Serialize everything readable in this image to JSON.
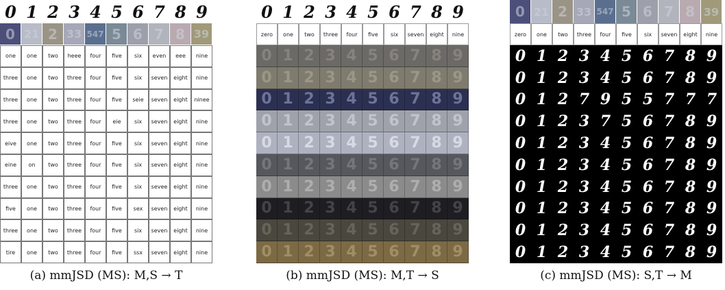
{
  "panels": [
    {
      "id": "a",
      "caption": "(a) mmJSD (MS): M,S → T",
      "mnist_top": [
        "0",
        "1",
        "2",
        "3",
        "4",
        "5",
        "6",
        "7",
        "8",
        "9"
      ],
      "svhn_top": [
        "0",
        "21",
        "2",
        "33",
        "547",
        "5",
        "6",
        "7",
        "8",
        "39"
      ],
      "text_rows": [
        [
          "one",
          "one",
          "two",
          "heee",
          "four",
          "five",
          "six",
          "even",
          "eee",
          "nine"
        ],
        [
          "three",
          "one",
          "two",
          "three",
          "four",
          "five",
          "six",
          "seven",
          "eight",
          "nine"
        ],
        [
          "three",
          "one",
          "two",
          "three",
          "four",
          "five",
          "seie",
          "seven",
          "eight",
          "ninee"
        ],
        [
          "three",
          "one",
          "two",
          "three",
          "four",
          "eie",
          "six",
          "seven",
          "eight",
          "nine"
        ],
        [
          "eive",
          "one",
          "two",
          "three",
          "four",
          "five",
          "six",
          "seven",
          "eight",
          "nine"
        ],
        [
          "eine",
          "on",
          "two",
          "three",
          "four",
          "five",
          "six",
          "seven",
          "eight",
          "nine"
        ],
        [
          "three",
          "one",
          "two",
          "three",
          "four",
          "five",
          "six",
          "sevee",
          "eight",
          "nine"
        ],
        [
          "five",
          "one",
          "two",
          "three",
          "four",
          "five",
          "sex",
          "seven",
          "eight",
          "nine"
        ],
        [
          "three",
          "one",
          "two",
          "three",
          "four",
          "five",
          "six",
          "seven",
          "eight",
          "nine"
        ],
        [
          "tire",
          "one",
          "two",
          "three",
          "four",
          "five",
          "ssx",
          "seven",
          "eight",
          "nine"
        ]
      ]
    },
    {
      "id": "b",
      "caption": "(b) mmJSD (MS): M,T → S",
      "mnist_top": [
        "0",
        "1",
        "2",
        "3",
        "4",
        "5",
        "6",
        "7",
        "8",
        "9"
      ],
      "text_top": [
        "zero",
        "one",
        "two",
        "three",
        "four",
        "five",
        "six",
        "seven",
        "eight",
        "nine"
      ],
      "svhn_rows": [
        {
          "bg": "#6b6a66",
          "fg": "#8a8880"
        },
        {
          "bg": "#7f7b6e",
          "fg": "#a19c8c"
        },
        {
          "bg": "#2c3050",
          "fg": "#7880a8"
        },
        {
          "bg": "#9fa2ab",
          "fg": "#c8cbd3"
        },
        {
          "bg": "#aeb2c0",
          "fg": "#dfe2ea"
        },
        {
          "bg": "#56585e",
          "fg": "#7a7c82"
        },
        {
          "bg": "#8b8b8b",
          "fg": "#b5b5b5"
        },
        {
          "bg": "#1e1e22",
          "fg": "#4a4a52"
        },
        {
          "bg": "#4a473f",
          "fg": "#6e6a5e"
        },
        {
          "bg": "#7c6a45",
          "fg": "#a8956c"
        }
      ],
      "svhn_digits": [
        "0",
        "1",
        "2",
        "3",
        "4",
        "5",
        "6",
        "7",
        "8",
        "9"
      ]
    },
    {
      "id": "c",
      "caption": "(c) mmJSD (MS): S,T → M",
      "svhn_top": [
        "0",
        "21",
        "2",
        "33",
        "547",
        "5",
        "6",
        "7",
        "8",
        "39"
      ],
      "text_top": [
        "zero",
        "one",
        "two",
        "three",
        "four",
        "five",
        "six",
        "seven",
        "eight",
        "nine"
      ],
      "mnist_rows": [
        [
          "0",
          "1",
          "2",
          "3",
          "4",
          "5",
          "6",
          "7",
          "8",
          "9"
        ],
        [
          "0",
          "1",
          "2",
          "3",
          "4",
          "5",
          "6",
          "7",
          "8",
          "9"
        ],
        [
          "0",
          "1",
          "2",
          "7",
          "9",
          "5",
          "5",
          "7",
          "7",
          "7"
        ],
        [
          "0",
          "1",
          "2",
          "3",
          "7",
          "5",
          "6",
          "7",
          "8",
          "9"
        ],
        [
          "0",
          "1",
          "2",
          "3",
          "4",
          "5",
          "6",
          "7",
          "8",
          "9"
        ],
        [
          "0",
          "1",
          "2",
          "3",
          "4",
          "5",
          "6",
          "7",
          "8",
          "9"
        ],
        [
          "0",
          "1",
          "2",
          "3",
          "4",
          "5",
          "6",
          "7",
          "8",
          "9"
        ],
        [
          "0",
          "1",
          "2",
          "3",
          "4",
          "5",
          "6",
          "7",
          "8",
          "9"
        ],
        [
          "0",
          "1",
          "2",
          "3",
          "4",
          "5",
          "6",
          "7",
          "8",
          "9"
        ],
        [
          "0",
          "1",
          "2",
          "3",
          "4",
          "5",
          "6",
          "7",
          "8",
          "9"
        ]
      ]
    }
  ],
  "colors": {
    "svhn_top_bgs": [
      "#4b4f7a",
      "#b8bcc8",
      "#9a9486",
      "#a6a8b8",
      "#5a6f8f",
      "#7a8a96",
      "#9da0aa",
      "#b2b4bd",
      "#b9aab0",
      "#a09a7a"
    ]
  }
}
